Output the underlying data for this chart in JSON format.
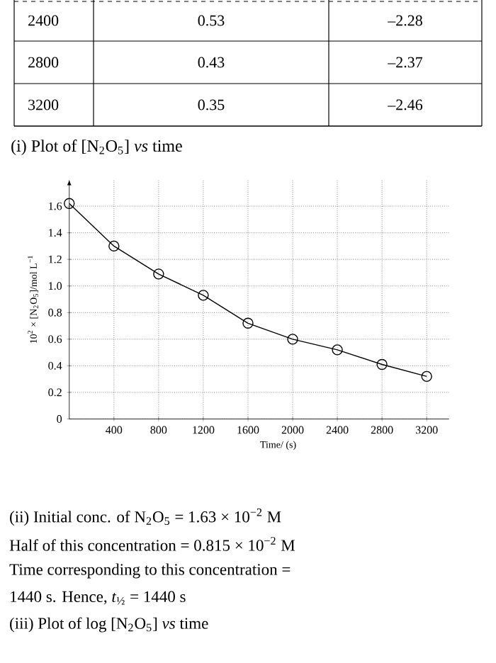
{
  "chart_data": {
    "type": "line",
    "title": "(i)  Plot of [N$_{2}$O$_{5}$] *vs* time",
    "xlabel": "Time/ (s)",
    "ylabel": "10$^{2}$ × [N$_{2}$O$_{5}$]/mol L$^{−1}$",
    "x": [
      0,
      400,
      800,
      1200,
      1600,
      2000,
      2400,
      2800,
      3200
    ],
    "series": [
      {
        "color": "#000000",
        "values": [
          1.62,
          1.3,
          1.09,
          0.93,
          0.72,
          0.6,
          0.52,
          0.41,
          0.32
        ]
      }
    ],
    "xlim": [
      0,
      3400
    ],
    "xticks": [
      400,
      800,
      1200,
      1600,
      2000,
      2400,
      2800,
      3200
    ],
    "ylim": [
      0,
      1.8
    ],
    "yticks": [
      0,
      0.2,
      0.4,
      0.6,
      0.8,
      {
        "value": 1.0,
        "label": "1.0"
      },
      1.2,
      1.4,
      1.6
    ],
    "grid": true,
    "marker": "circle",
    "line_style": "solid",
    "annotations": [
      "2400",
      "0.53",
      "–2.28",
      "2800",
      "0.43",
      "–2.37",
      "3200",
      "0.35",
      "–2.46",
      "(ii)  Initial conc. of N$_{2}$O$_{5}$ = 1.63 × 10$^{−2}$ M",
      "Half of this concentration = 0.815 × 10$^{−2}$ M",
      "Time corresponding to this concentration =",
      "1440 s. Hence, *t*$_{½}$ = 1440 s",
      "(iii)  Plot of log [N$_{2}$O$_{5}$] *vs* time"
    ]
  }
}
